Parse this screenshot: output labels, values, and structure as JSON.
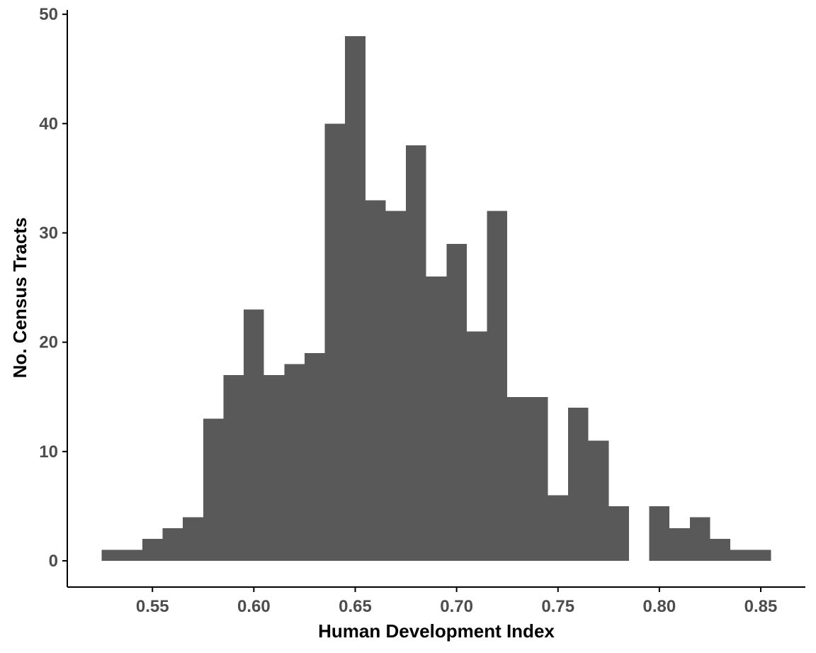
{
  "chart_data": {
    "type": "bar",
    "subtype": "histogram",
    "title": "",
    "xlabel": "Human Development Index",
    "ylabel": "No. Census Tracts",
    "bin_width": 0.01,
    "bins": [
      {
        "x0": 0.525,
        "x1": 0.535,
        "count": 1
      },
      {
        "x0": 0.535,
        "x1": 0.545,
        "count": 1
      },
      {
        "x0": 0.545,
        "x1": 0.555,
        "count": 2
      },
      {
        "x0": 0.555,
        "x1": 0.565,
        "count": 3
      },
      {
        "x0": 0.565,
        "x1": 0.575,
        "count": 4
      },
      {
        "x0": 0.575,
        "x1": 0.585,
        "count": 13
      },
      {
        "x0": 0.585,
        "x1": 0.595,
        "count": 17
      },
      {
        "x0": 0.595,
        "x1": 0.605,
        "count": 23
      },
      {
        "x0": 0.605,
        "x1": 0.615,
        "count": 17
      },
      {
        "x0": 0.615,
        "x1": 0.625,
        "count": 18
      },
      {
        "x0": 0.625,
        "x1": 0.635,
        "count": 19
      },
      {
        "x0": 0.635,
        "x1": 0.645,
        "count": 40
      },
      {
        "x0": 0.645,
        "x1": 0.655,
        "count": 48
      },
      {
        "x0": 0.655,
        "x1": 0.665,
        "count": 33
      },
      {
        "x0": 0.665,
        "x1": 0.675,
        "count": 32
      },
      {
        "x0": 0.675,
        "x1": 0.685,
        "count": 38
      },
      {
        "x0": 0.685,
        "x1": 0.695,
        "count": 26
      },
      {
        "x0": 0.695,
        "x1": 0.705,
        "count": 29
      },
      {
        "x0": 0.705,
        "x1": 0.715,
        "count": 21
      },
      {
        "x0": 0.715,
        "x1": 0.725,
        "count": 32
      },
      {
        "x0": 0.725,
        "x1": 0.735,
        "count": 15
      },
      {
        "x0": 0.735,
        "x1": 0.745,
        "count": 15
      },
      {
        "x0": 0.745,
        "x1": 0.755,
        "count": 6
      },
      {
        "x0": 0.755,
        "x1": 0.765,
        "count": 14
      },
      {
        "x0": 0.765,
        "x1": 0.775,
        "count": 11
      },
      {
        "x0": 0.775,
        "x1": 0.785,
        "count": 5
      },
      {
        "x0": 0.785,
        "x1": 0.795,
        "count": 0
      },
      {
        "x0": 0.795,
        "x1": 0.805,
        "count": 5
      },
      {
        "x0": 0.805,
        "x1": 0.815,
        "count": 3
      },
      {
        "x0": 0.815,
        "x1": 0.825,
        "count": 4
      },
      {
        "x0": 0.825,
        "x1": 0.835,
        "count": 2
      },
      {
        "x0": 0.835,
        "x1": 0.845,
        "count": 1
      },
      {
        "x0": 0.845,
        "x1": 0.855,
        "count": 1
      }
    ],
    "xlim": [
      0.508,
      0.872
    ],
    "ylim": [
      -2.4,
      50.4
    ],
    "x_ticks": [
      {
        "value": 0.55,
        "label": "0.55"
      },
      {
        "value": 0.6,
        "label": "0.60"
      },
      {
        "value": 0.65,
        "label": "0.65"
      },
      {
        "value": 0.7,
        "label": "0.70"
      },
      {
        "value": 0.75,
        "label": "0.75"
      },
      {
        "value": 0.8,
        "label": "0.80"
      },
      {
        "value": 0.85,
        "label": "0.85"
      }
    ],
    "y_ticks": [
      {
        "value": 0,
        "label": "0"
      },
      {
        "value": 10,
        "label": "10"
      },
      {
        "value": 20,
        "label": "20"
      },
      {
        "value": 30,
        "label": "30"
      },
      {
        "value": 40,
        "label": "40"
      },
      {
        "value": 50,
        "label": "50"
      }
    ],
    "bar_color": "#595959",
    "grid": false,
    "legend": "none"
  }
}
